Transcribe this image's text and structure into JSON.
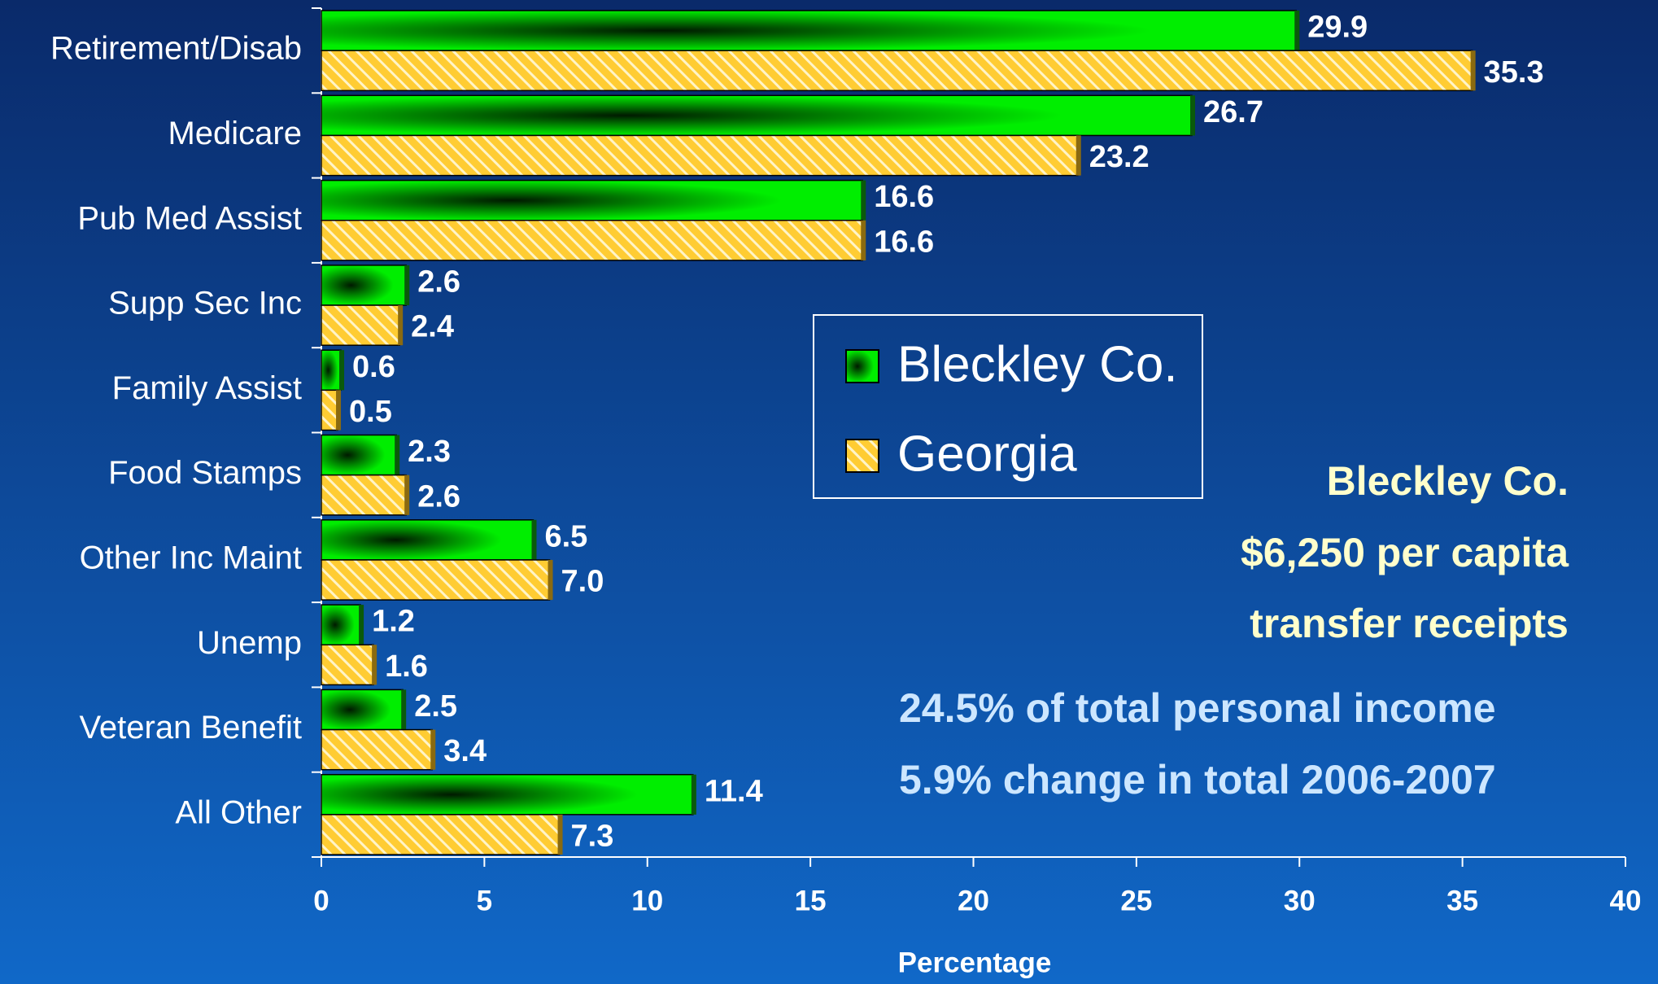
{
  "chart_data": {
    "type": "bar",
    "orientation": "horizontal",
    "categories": [
      "Retirement/Disab",
      "Medicare",
      "Pub Med Assist",
      "Supp Sec Inc",
      "Family Assist",
      "Food Stamps",
      "Other Inc Maint",
      "Unemp",
      "Veteran Benefit",
      "All Other"
    ],
    "series": [
      {
        "name": "Bleckley Co.",
        "color": "#00dd00",
        "values": [
          29.9,
          26.7,
          16.6,
          2.6,
          0.6,
          2.3,
          6.5,
          1.2,
          2.5,
          11.4
        ],
        "value_labels": [
          "29.9",
          "26.7",
          "16.6",
          "2.6",
          "0.6",
          "2.3",
          "6.5",
          "1.2",
          "2.5",
          "11.4"
        ]
      },
      {
        "name": "Georgia",
        "color": "#ffcc33",
        "values": [
          35.3,
          23.2,
          16.6,
          2.4,
          0.5,
          2.6,
          7,
          1.6,
          3.4,
          7.3
        ],
        "value_labels": [
          "35.3",
          "23.2",
          "16.6",
          "2.4",
          "0.5",
          "2.6",
          "7.0",
          "1.6",
          "3.4",
          "7.3"
        ]
      }
    ],
    "xlabel": "Percentage",
    "xlim": [
      0,
      40
    ],
    "xticks": [
      0,
      5,
      10,
      15,
      20,
      25,
      30,
      35,
      40
    ],
    "legend": "center",
    "annotations": [
      "Bleckley Co.",
      "$6,250  per capita",
      "transfer receipts",
      "24.5% of total personal income",
      "5.9% change in total 2006-2007"
    ]
  }
}
